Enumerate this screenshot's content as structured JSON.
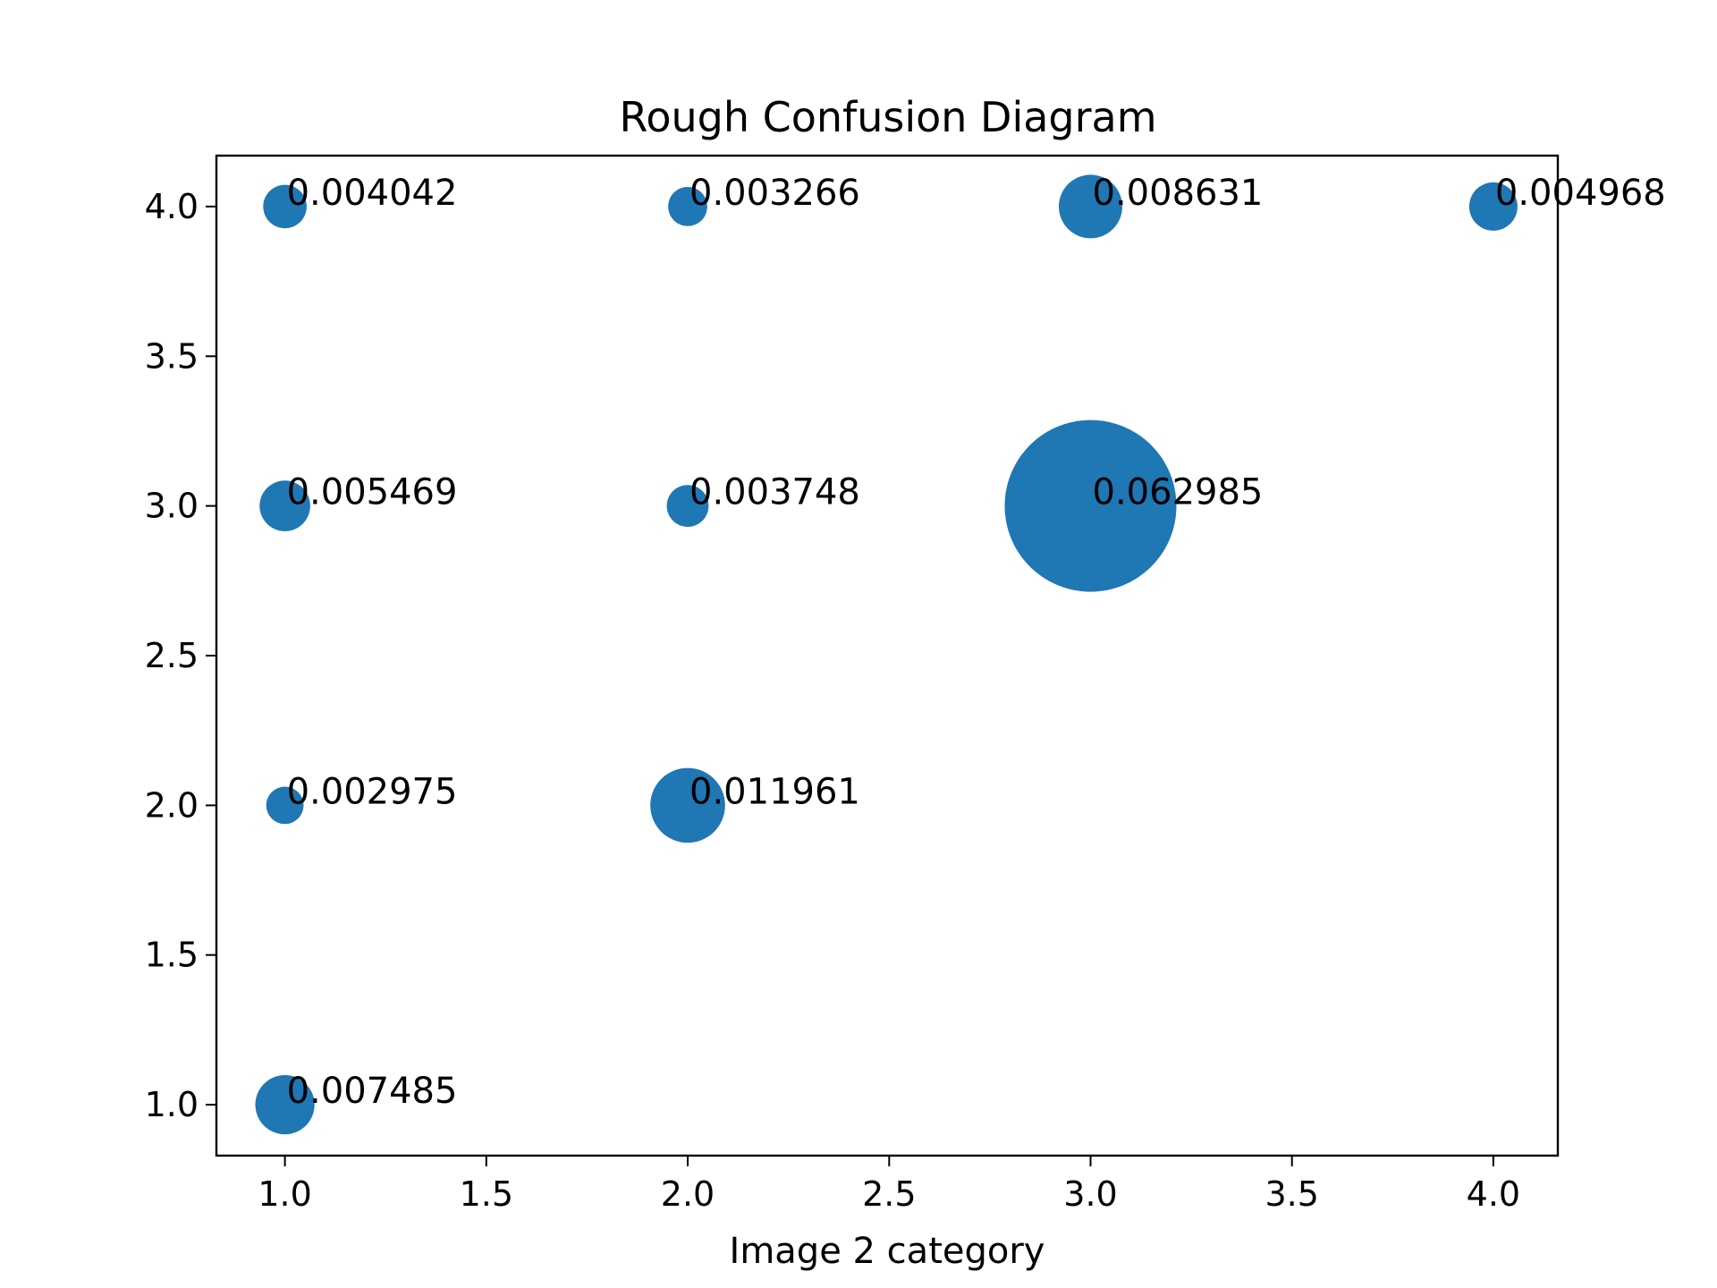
{
  "chart_data": {
    "type": "scatter",
    "title": "Rough Confusion Diagram",
    "xlabel": "Image 2 category",
    "ylabel": "",
    "xlim": [
      0.83,
      4.16
    ],
    "ylim": [
      0.83,
      4.17
    ],
    "xticks": [
      1.0,
      1.5,
      2.0,
      2.5,
      3.0,
      3.5,
      4.0
    ],
    "xtick_labels": [
      "1.0",
      "1.5",
      "2.0",
      "2.5",
      "3.0",
      "3.5",
      "4.0"
    ],
    "yticks": [
      1.0,
      1.5,
      2.0,
      2.5,
      3.0,
      3.5,
      4.0
    ],
    "ytick_labels": [
      "1.0",
      "1.5",
      "2.0",
      "2.5",
      "3.0",
      "3.5",
      "4.0"
    ],
    "grid": false,
    "color": "#1f77b4",
    "points": [
      {
        "x": 1,
        "y": 4,
        "value": 0.004042,
        "label": "0.004042"
      },
      {
        "x": 2,
        "y": 4,
        "value": 0.003266,
        "label": "0.003266"
      },
      {
        "x": 3,
        "y": 4,
        "value": 0.008631,
        "label": "0.008631"
      },
      {
        "x": 4,
        "y": 4,
        "value": 0.004968,
        "label": "0.004968"
      },
      {
        "x": 1,
        "y": 3,
        "value": 0.005469,
        "label": "0.005469"
      },
      {
        "x": 2,
        "y": 3,
        "value": 0.003748,
        "label": "0.003748"
      },
      {
        "x": 3,
        "y": 3,
        "value": 0.062985,
        "label": "0.062985"
      },
      {
        "x": 1,
        "y": 2,
        "value": 0.002975,
        "label": "0.002975"
      },
      {
        "x": 2,
        "y": 2,
        "value": 0.011961,
        "label": "0.011961"
      },
      {
        "x": 1,
        "y": 1,
        "value": 0.007485,
        "label": "0.007485"
      }
    ]
  }
}
